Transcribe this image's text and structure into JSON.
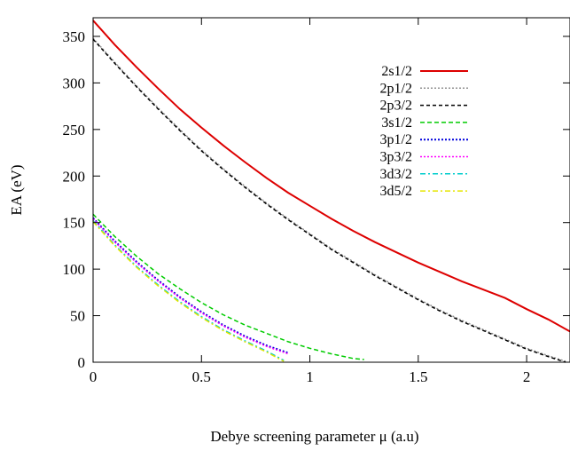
{
  "chart_data": {
    "type": "line",
    "title": "",
    "xlabel": "Debye screening parameter  μ (a.u)",
    "ylabel": "EA (eV)",
    "xlim": [
      0,
      2.2
    ],
    "ylim": [
      0,
      370
    ],
    "xticks": [
      {
        "value": 0,
        "label": "0"
      },
      {
        "value": 0.5,
        "label": "0.5"
      },
      {
        "value": 1,
        "label": "1"
      },
      {
        "value": 1.5,
        "label": "1.5"
      },
      {
        "value": 2,
        "label": "2"
      }
    ],
    "yticks": [
      {
        "value": 0,
        "label": "0"
      },
      {
        "value": 50,
        "label": "50"
      },
      {
        "value": 100,
        "label": "100"
      },
      {
        "value": 150,
        "label": "150"
      },
      {
        "value": 200,
        "label": "200"
      },
      {
        "value": 250,
        "label": "250"
      },
      {
        "value": 300,
        "label": "300"
      },
      {
        "value": 350,
        "label": "350"
      }
    ],
    "grid": false,
    "legend_position": "top-right",
    "series": [
      {
        "name": "2s1/2",
        "color": "#dd0000",
        "dash": "",
        "width": 2,
        "x": [
          0,
          0.1,
          0.2,
          0.3,
          0.4,
          0.5,
          0.6,
          0.7,
          0.8,
          0.9,
          1.0,
          1.1,
          1.2,
          1.3,
          1.4,
          1.5,
          1.6,
          1.7,
          1.8,
          1.9,
          2.0,
          2.1,
          2.2
        ],
        "y": [
          367,
          341,
          317,
          294,
          272,
          252,
          233,
          215,
          198,
          182,
          168,
          154,
          141,
          129,
          118,
          107,
          97,
          87,
          78,
          69,
          57,
          46,
          33
        ]
      },
      {
        "name": "2p1/2",
        "color": "#909090",
        "dash": "2,2",
        "width": 1.5,
        "x": [
          0,
          0.1,
          0.2,
          0.3,
          0.4,
          0.5,
          0.6,
          0.7,
          0.8,
          0.9,
          1.0,
          1.1,
          1.2,
          1.3,
          1.4,
          1.5,
          1.6,
          1.7,
          1.8,
          1.9,
          2.0,
          2.1,
          2.18
        ],
        "y": [
          348,
          322,
          297,
          273,
          250,
          228,
          208,
          189,
          171,
          154,
          138,
          122,
          108,
          94,
          81,
          68,
          56,
          45,
          35,
          25,
          15,
          7,
          1
        ]
      },
      {
        "name": "2p3/2",
        "color": "#000000",
        "dash": "4,3",
        "width": 1.5,
        "x": [
          0,
          0.1,
          0.2,
          0.3,
          0.4,
          0.5,
          0.6,
          0.7,
          0.8,
          0.9,
          1.0,
          1.1,
          1.2,
          1.3,
          1.4,
          1.5,
          1.6,
          1.7,
          1.8,
          1.9,
          2.0,
          2.1,
          2.18
        ],
        "y": [
          347,
          321,
          296,
          272,
          249,
          227,
          207,
          188,
          170,
          153,
          137,
          121,
          107,
          93,
          80,
          67,
          55,
          44,
          34,
          24,
          14,
          6,
          0
        ]
      },
      {
        "name": "3s1/2",
        "color": "#00cc00",
        "dash": "5,3",
        "width": 1.5,
        "x": [
          0,
          0.1,
          0.2,
          0.3,
          0.4,
          0.5,
          0.6,
          0.7,
          0.8,
          0.9,
          1.0,
          1.1,
          1.2,
          1.25
        ],
        "y": [
          159,
          135,
          114,
          95,
          79,
          64,
          51,
          40,
          31,
          22,
          15,
          9,
          4,
          3
        ]
      },
      {
        "name": "3p1/2",
        "color": "#0000dd",
        "dash": "2,2",
        "width": 2,
        "x": [
          0,
          0.1,
          0.2,
          0.3,
          0.4,
          0.5,
          0.6,
          0.7,
          0.8,
          0.9
        ],
        "y": [
          155,
          130,
          108,
          88,
          70,
          54,
          40,
          28,
          18,
          10
        ]
      },
      {
        "name": "3p3/2",
        "color": "#ff00ff",
        "dash": "2,2",
        "width": 1.5,
        "x": [
          0,
          0.1,
          0.2,
          0.3,
          0.4,
          0.5,
          0.6,
          0.7,
          0.8,
          0.9
        ],
        "y": [
          154,
          129,
          107,
          87,
          69,
          53,
          39,
          27,
          17,
          9
        ]
      },
      {
        "name": "3d3/2",
        "color": "#00cccc",
        "dash": "6,3,2,3",
        "width": 1.5,
        "x": [
          0,
          0.1,
          0.2,
          0.3,
          0.4,
          0.5,
          0.6,
          0.7,
          0.8,
          0.88
        ],
        "y": [
          152,
          126,
          103,
          83,
          65,
          49,
          35,
          23,
          12,
          2
        ]
      },
      {
        "name": "3d5/2",
        "color": "#e6e600",
        "dash": "6,3,2,3",
        "width": 1.5,
        "x": [
          0,
          0.1,
          0.2,
          0.3,
          0.4,
          0.5,
          0.6,
          0.7,
          0.8,
          0.88
        ],
        "y": [
          151,
          125,
          102,
          82,
          64,
          48,
          34,
          22,
          11,
          1
        ]
      }
    ]
  }
}
